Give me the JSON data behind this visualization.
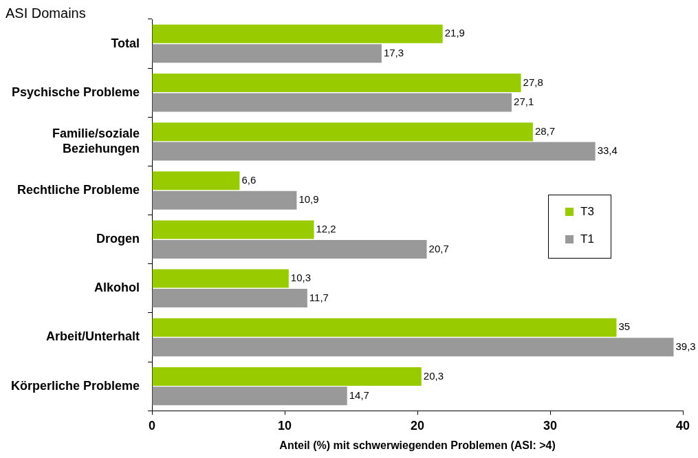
{
  "chart_data": {
    "type": "bar",
    "orientation": "horizontal",
    "ylabel": "ASI Domains",
    "xlabel": "Anteil (%) mit schwerwiegenden Problemen (ASI: >4)",
    "categories": [
      "Total",
      "Psychische Probleme",
      "Familie/soziale Beziehungen",
      "Rechtliche Probleme",
      "Drogen",
      "Alkohol",
      "Arbeit/Unterhalt",
      "Körperliche Probleme"
    ],
    "series": [
      {
        "name": "T3",
        "color": "#99cc00",
        "values": [
          21.9,
          27.8,
          28.7,
          6.6,
          12.2,
          10.3,
          35,
          20.3
        ],
        "value_labels": [
          "21,9",
          "27,8",
          "28,7",
          "6,6",
          "12,2",
          "10,3",
          "35",
          "20,3"
        ]
      },
      {
        "name": "T1",
        "color": "#999999",
        "values": [
          17.3,
          27.1,
          33.4,
          10.9,
          20.7,
          11.7,
          39.3,
          14.7
        ],
        "value_labels": [
          "17,3",
          "27,1",
          "33,4",
          "10,9",
          "20,7",
          "11,7",
          "39,3",
          "14,7"
        ]
      }
    ],
    "xlim": [
      0,
      40
    ],
    "xticks": [
      0,
      10,
      20,
      30,
      40
    ],
    "legend": "right",
    "grid": false
  }
}
